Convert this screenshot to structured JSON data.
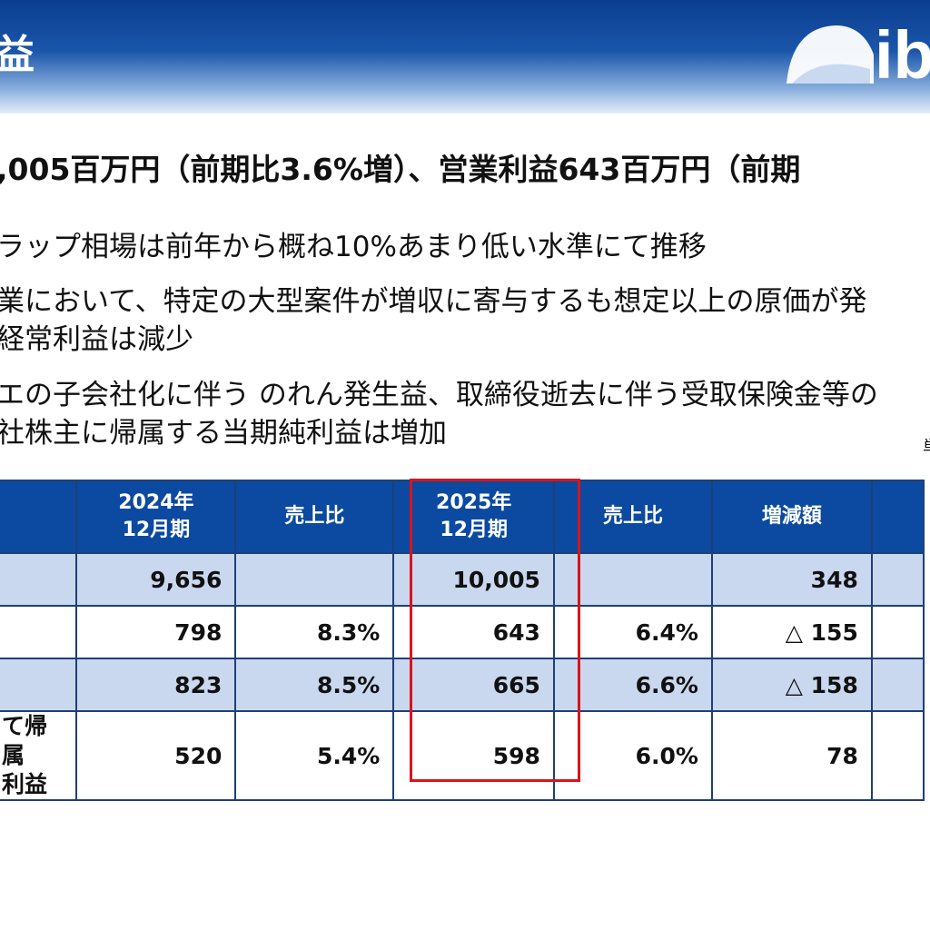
{
  "header": {
    "title": "益",
    "logo_text": "ib"
  },
  "headline": ",005百万円（前期比3.6%増）、営業利益643百万円（前期",
  "bullets": [
    "ラップ相場は前年から概ね10%あまり低い水準にて推移",
    "業において、特定の大型案件が増収に寄与するも想定以上の原価が発",
    "経常利益は減少",
    "エの子会社化に伴う のれん発生益、取締役逝去に伴う受取保険金等の",
    "社株主に帰属する当期純利益は増加"
  ],
  "unit_note": "単",
  "table": {
    "headers": [
      "",
      "2024年\n12月期",
      "売上比",
      "2025年\n12月期",
      "売上比",
      "増減額",
      ""
    ],
    "rows": [
      {
        "label": "",
        "cells": [
          "9,656",
          "",
          "10,005",
          "",
          "348"
        ]
      },
      {
        "label": "",
        "cells": [
          "798",
          "8.3%",
          "643",
          "6.4%",
          "△ 155"
        ]
      },
      {
        "label": "",
        "cells": [
          "823",
          "8.5%",
          "665",
          "6.6%",
          "△ 158"
        ]
      },
      {
        "label": "て帰属\n利益",
        "cells": [
          "520",
          "5.4%",
          "598",
          "6.0%",
          "78"
        ]
      }
    ]
  },
  "colors": {
    "header_blue": "#0b4aa0",
    "row_shade": "#c9d8ef",
    "highlight": "#d9141b"
  }
}
